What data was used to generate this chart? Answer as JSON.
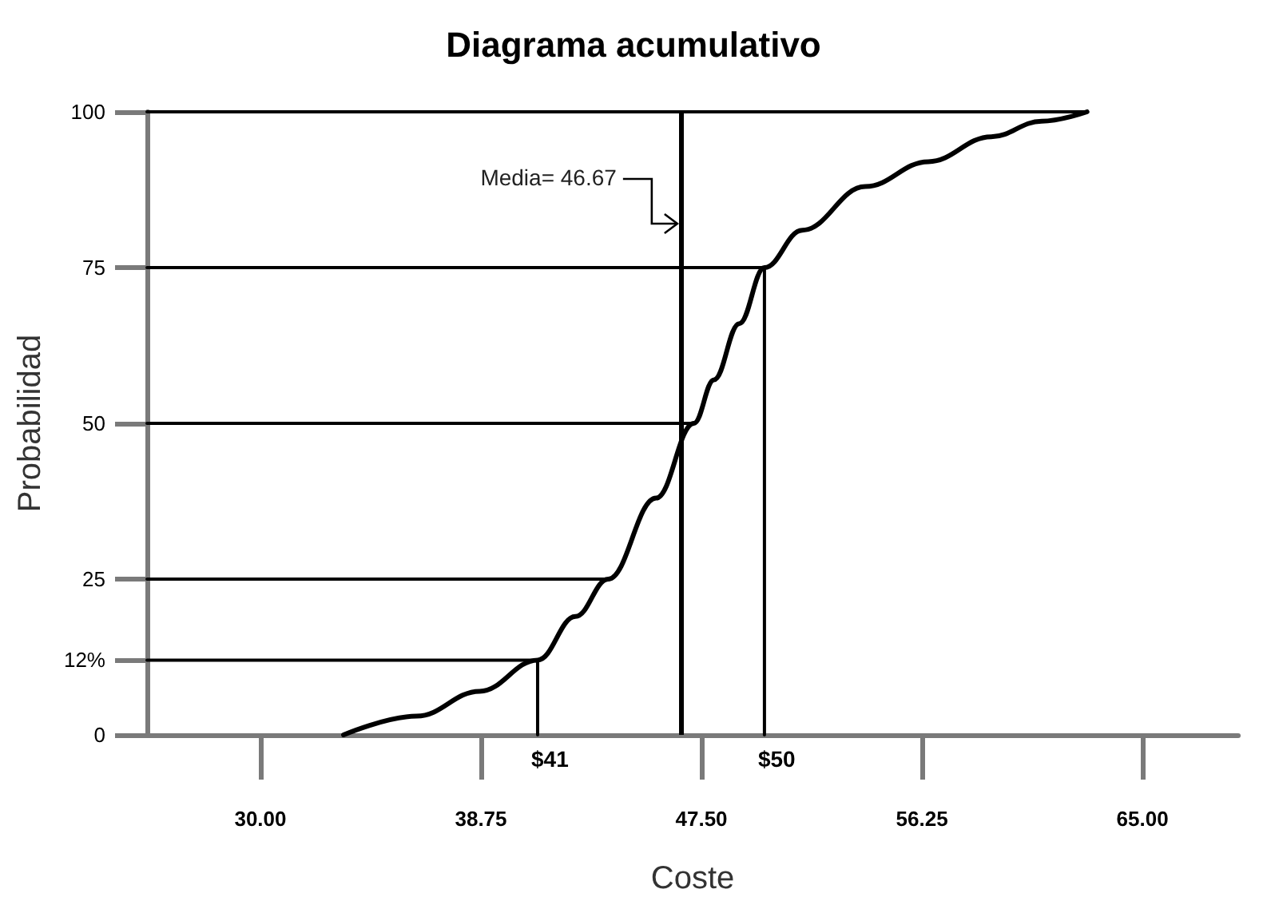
{
  "chart_data": {
    "type": "line",
    "title": "Diagrama acumulativo",
    "xlabel": "Coste",
    "ylabel": "Probabilidad",
    "xlim": [
      25.5,
      68.8
    ],
    "ylim": [
      0,
      100
    ],
    "xticks": [
      {
        "value": 30,
        "label": "30.00"
      },
      {
        "value": 38.75,
        "label": "38.75"
      },
      {
        "value": 47.5,
        "label": "47.50"
      },
      {
        "value": 56.25,
        "label": "56.25"
      },
      {
        "value": 65,
        "label": "65.00"
      }
    ],
    "yticks": [
      0,
      {
        "value": 12,
        "label": "12%"
      },
      25,
      50,
      75,
      100
    ],
    "grid": false,
    "marker": "none",
    "series": [
      {
        "color": "#000000",
        "x": [
          33.3,
          36.2,
          38.7,
          41,
          42.5,
          43.8,
          45.7,
          47.2,
          48,
          49,
          50,
          51.5,
          54,
          56.5,
          59,
          61,
          62.8
        ],
        "values": [
          0,
          3,
          7,
          12,
          19,
          25,
          38,
          50,
          57,
          66,
          75,
          81,
          88,
          92,
          96,
          98.5,
          100
        ]
      },
      {
        "color": "#000000",
        "x": [
          25.5,
          41,
          41
        ],
        "values": [
          12,
          12,
          0
        ]
      },
      {
        "color": "#000000",
        "x": [
          25.5,
          43.8
        ],
        "values": [
          25,
          25
        ]
      },
      {
        "color": "#000000",
        "x": [
          25.5,
          47.2
        ],
        "values": [
          50,
          50
        ]
      },
      {
        "color": "#000000",
        "x": [
          25.5,
          50,
          50
        ],
        "values": [
          75,
          75,
          0
        ]
      },
      {
        "color": "#000000",
        "x": [
          25.5,
          62.8
        ],
        "values": [
          100,
          100
        ]
      }
    ],
    "ref_lines": [
      {
        "axis": "x",
        "value": 46.67,
        "label": "Media= 46.67",
        "color": "#000000"
      }
    ],
    "annotations": [
      {
        "text": "$41",
        "x": 41,
        "y": 0
      },
      {
        "text": "$50",
        "x": 50,
        "y": 0
      }
    ]
  }
}
